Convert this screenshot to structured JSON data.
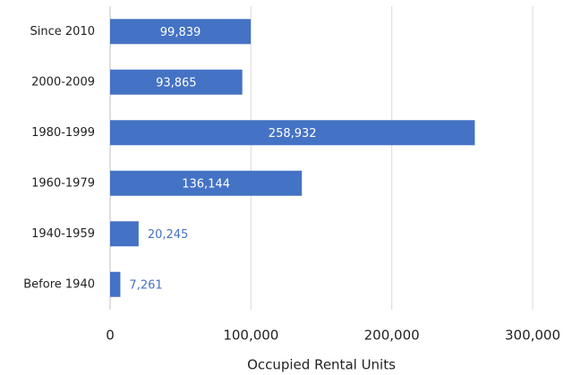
{
  "chart_data": {
    "type": "bar",
    "orientation": "horizontal",
    "x_label": "Occupied Rental Units",
    "categories": [
      "Since 2010",
      "2000-2009",
      "1980-1999",
      "1960-1979",
      "1940-1959",
      "Before 1940"
    ],
    "values": [
      99839,
      93865,
      258932,
      136144,
      20245,
      7261
    ],
    "value_labels": [
      "99,839",
      "93,865",
      "258,932",
      "136,144",
      "20,245",
      "7,261"
    ],
    "color": "#4472c4",
    "xlim": [
      0,
      300000
    ],
    "xticks": [
      0,
      {
        "value": 100000,
        "label": "100,000"
      },
      {
        "value": 200000,
        "label": "200,000"
      },
      {
        "value": 300000,
        "label": "300,000"
      }
    ],
    "grid": true
  }
}
